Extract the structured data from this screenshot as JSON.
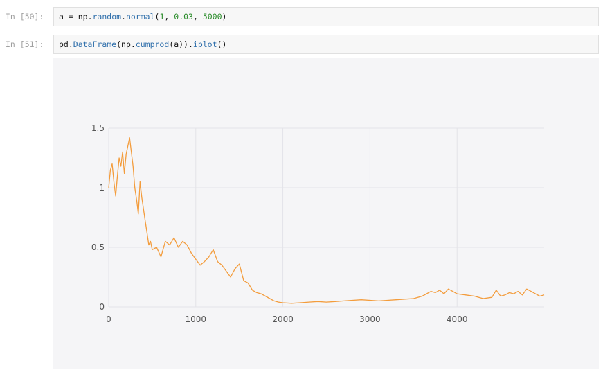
{
  "cells": [
    {
      "prompt": "In [50]:",
      "code_tokens": [
        {
          "t": "a ",
          "c": ""
        },
        {
          "t": "=",
          "c": "tok-op"
        },
        {
          "t": " np.",
          "c": ""
        },
        {
          "t": "random",
          "c": "tok-fn"
        },
        {
          "t": ".",
          "c": ""
        },
        {
          "t": "normal",
          "c": "tok-fn"
        },
        {
          "t": "(",
          "c": ""
        },
        {
          "t": "1",
          "c": "tok-num"
        },
        {
          "t": ", ",
          "c": ""
        },
        {
          "t": "0.03",
          "c": "tok-num"
        },
        {
          "t": ", ",
          "c": ""
        },
        {
          "t": "5000",
          "c": "tok-num"
        },
        {
          "t": ")",
          "c": ""
        }
      ]
    },
    {
      "prompt": "In [51]:",
      "code_tokens": [
        {
          "t": "pd.",
          "c": ""
        },
        {
          "t": "DataFrame",
          "c": "tok-fn"
        },
        {
          "t": "(np.",
          "c": ""
        },
        {
          "t": "cumprod",
          "c": "tok-fn"
        },
        {
          "t": "(a)).",
          "c": ""
        },
        {
          "t": "iplot",
          "c": "tok-fn"
        },
        {
          "t": "()",
          "c": ""
        }
      ]
    }
  ],
  "chart_data": {
    "type": "line",
    "title": "",
    "xlabel": "",
    "ylabel": "",
    "xlim": [
      0,
      5000
    ],
    "ylim": [
      0,
      1.5
    ],
    "grid": true,
    "line_color": "#f39c3c",
    "x_ticks": [
      {
        "v": 0,
        "label": "0"
      },
      {
        "v": 1000,
        "label": "1000"
      },
      {
        "v": 2000,
        "label": "2000"
      },
      {
        "v": 3000,
        "label": "3000"
      },
      {
        "v": 4000,
        "label": "4000"
      }
    ],
    "y_ticks": [
      {
        "v": 0,
        "label": "0"
      },
      {
        "v": 0.5,
        "label": "0.5"
      },
      {
        "v": 1,
        "label": "1"
      },
      {
        "v": 1.5,
        "label": "1.5"
      }
    ],
    "series": [
      {
        "x": [
          0,
          20,
          40,
          60,
          80,
          100,
          120,
          140,
          160,
          180,
          200,
          220,
          240,
          260,
          280,
          300,
          320,
          340,
          360,
          380,
          400,
          420,
          440,
          460,
          480,
          500,
          550,
          600,
          650,
          700,
          750,
          800,
          850,
          900,
          950,
          1000,
          1050,
          1100,
          1150,
          1200,
          1250,
          1300,
          1350,
          1400,
          1450,
          1500,
          1550,
          1600,
          1650,
          1700,
          1750,
          1800,
          1850,
          1900,
          1950,
          2000,
          2100,
          2200,
          2300,
          2400,
          2500,
          2600,
          2700,
          2800,
          2900,
          3000,
          3100,
          3200,
          3300,
          3400,
          3500,
          3600,
          3700,
          3750,
          3800,
          3850,
          3900,
          3950,
          4000,
          4100,
          4200,
          4300,
          4400,
          4450,
          4500,
          4550,
          4600,
          4650,
          4700,
          4750,
          4800,
          4850,
          4900,
          4950,
          5000
        ],
        "y": [
          1.0,
          1.15,
          1.2,
          1.05,
          0.93,
          1.1,
          1.25,
          1.18,
          1.3,
          1.12,
          1.28,
          1.35,
          1.42,
          1.3,
          1.18,
          1.0,
          0.9,
          0.78,
          1.05,
          0.92,
          0.82,
          0.72,
          0.62,
          0.52,
          0.55,
          0.48,
          0.5,
          0.42,
          0.55,
          0.52,
          0.58,
          0.5,
          0.55,
          0.52,
          0.45,
          0.4,
          0.35,
          0.38,
          0.42,
          0.48,
          0.38,
          0.35,
          0.3,
          0.25,
          0.32,
          0.36,
          0.22,
          0.2,
          0.14,
          0.12,
          0.11,
          0.09,
          0.07,
          0.05,
          0.04,
          0.035,
          0.03,
          0.035,
          0.04,
          0.045,
          0.04,
          0.045,
          0.05,
          0.055,
          0.06,
          0.055,
          0.05,
          0.055,
          0.06,
          0.065,
          0.07,
          0.09,
          0.13,
          0.12,
          0.14,
          0.11,
          0.15,
          0.13,
          0.11,
          0.1,
          0.09,
          0.07,
          0.08,
          0.14,
          0.09,
          0.1,
          0.12,
          0.11,
          0.13,
          0.1,
          0.15,
          0.13,
          0.11,
          0.09,
          0.1
        ]
      }
    ]
  }
}
